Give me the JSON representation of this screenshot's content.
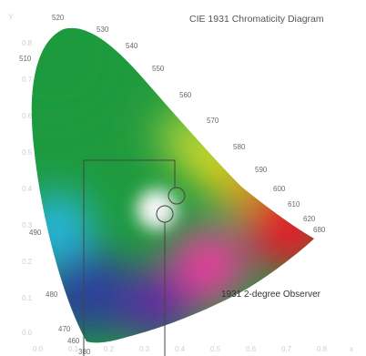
{
  "title": "CIE 1931 Chromaticity Diagram",
  "observer_label": "1931 2-degree Observer",
  "axes": {
    "y_axis_letter": "y",
    "x_axis_letter": "x",
    "y_ticks": [
      "0.8",
      "0.7",
      "0.6",
      "0.5",
      "0.4",
      "0.3",
      "0.2",
      "0.1",
      "0.0"
    ],
    "x_ticks": [
      "0.0",
      "0.1",
      "0.2",
      "0.3",
      "0.4",
      "0.5",
      "0.6",
      "0.7",
      "0.8"
    ]
  },
  "wavelength_labels": [
    "380",
    "460",
    "470",
    "480",
    "490",
    "510",
    "520",
    "530",
    "540",
    "550",
    "560",
    "570",
    "580",
    "590",
    "600",
    "610",
    "620",
    "680"
  ],
  "colors": {
    "green": "#1f9a3e",
    "yellow_green": "#a7d23b",
    "yellow": "#f0e61e",
    "orange": "#f3a21b",
    "red": "#e11d2b",
    "magenta": "#e93d9c",
    "violet": "#5b2ca0",
    "blue": "#2c3c9a",
    "cyan": "#28b8e6",
    "white_point": "#f6f6f6",
    "guide_line": "#444444"
  }
}
